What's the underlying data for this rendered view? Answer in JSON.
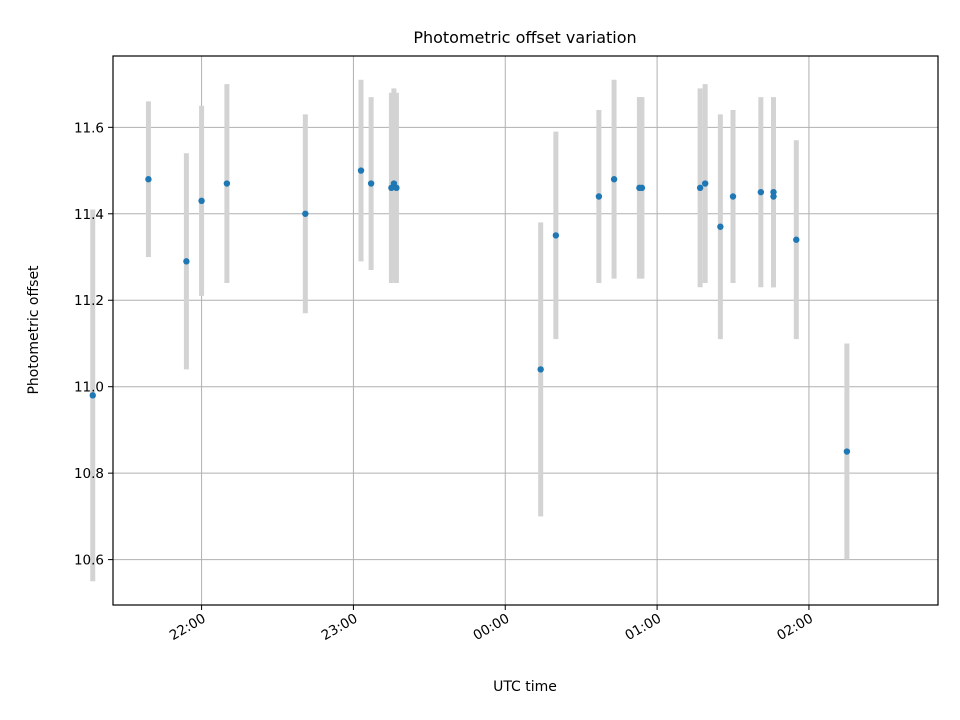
{
  "chart_data": {
    "type": "scatter",
    "title": "Photometric offset variation",
    "xlabel": "UTC time",
    "ylabel": "Photometric offset",
    "x_axis_type": "time",
    "xlim": [
      "21:25",
      "02:51"
    ],
    "ylim": [
      10.495,
      11.765
    ],
    "grid": true,
    "colors": {
      "marker": "#1f77b4",
      "errorbar": "#d3d3d3",
      "grid": "#b0b0b0",
      "axes": "#000000"
    },
    "x_ticks": [
      {
        "value": "22:00",
        "label": "22:00"
      },
      {
        "value": "23:00",
        "label": "23:00"
      },
      {
        "value": "00:00",
        "label": "00:00"
      },
      {
        "value": "01:00",
        "label": "01:00"
      },
      {
        "value": "02:00",
        "label": "02:00"
      }
    ],
    "y_ticks": [
      {
        "value": 10.6,
        "label": "10.6"
      },
      {
        "value": 10.8,
        "label": "10.8"
      },
      {
        "value": 11.0,
        "label": "11.0"
      },
      {
        "value": 11.2,
        "label": "11.2"
      },
      {
        "value": 11.4,
        "label": "11.4"
      },
      {
        "value": 11.6,
        "label": "11.6"
      }
    ],
    "points": [
      {
        "x": "21:17",
        "y": 10.98,
        "err": 0.43
      },
      {
        "x": "21:39",
        "y": 11.48,
        "err": 0.18
      },
      {
        "x": "21:54",
        "y": 11.29,
        "err": 0.25
      },
      {
        "x": "22:00",
        "y": 11.43,
        "err": 0.22
      },
      {
        "x": "22:10",
        "y": 11.47,
        "err": 0.23
      },
      {
        "x": "22:41",
        "y": 11.4,
        "err": 0.23
      },
      {
        "x": "23:03",
        "y": 11.5,
        "err": 0.21
      },
      {
        "x": "23:07",
        "y": 11.47,
        "err": 0.2
      },
      {
        "x": "23:15",
        "y": 11.46,
        "err": 0.22
      },
      {
        "x": "23:16",
        "y": 11.47,
        "err": 0.22
      },
      {
        "x": "23:17",
        "y": 11.46,
        "err": 0.22
      },
      {
        "x": "00:14",
        "y": 11.04,
        "err": 0.34
      },
      {
        "x": "00:20",
        "y": 11.35,
        "err": 0.24
      },
      {
        "x": "00:37",
        "y": 11.44,
        "err": 0.2
      },
      {
        "x": "00:43",
        "y": 11.48,
        "err": 0.23
      },
      {
        "x": "00:53",
        "y": 11.46,
        "err": 0.21
      },
      {
        "x": "00:54",
        "y": 11.46,
        "err": 0.21
      },
      {
        "x": "01:17",
        "y": 11.46,
        "err": 0.23
      },
      {
        "x": "01:19",
        "y": 11.47,
        "err": 0.23
      },
      {
        "x": "01:25",
        "y": 11.37,
        "err": 0.26
      },
      {
        "x": "01:30",
        "y": 11.44,
        "err": 0.2
      },
      {
        "x": "01:41",
        "y": 11.45,
        "err": 0.22
      },
      {
        "x": "01:46",
        "y": 11.45,
        "err": 0.22
      },
      {
        "x": "01:46",
        "y": 11.44,
        "err": 0.21
      },
      {
        "x": "01:55",
        "y": 11.34,
        "err": 0.23
      },
      {
        "x": "02:15",
        "y": 10.85,
        "err": 0.25
      }
    ]
  }
}
